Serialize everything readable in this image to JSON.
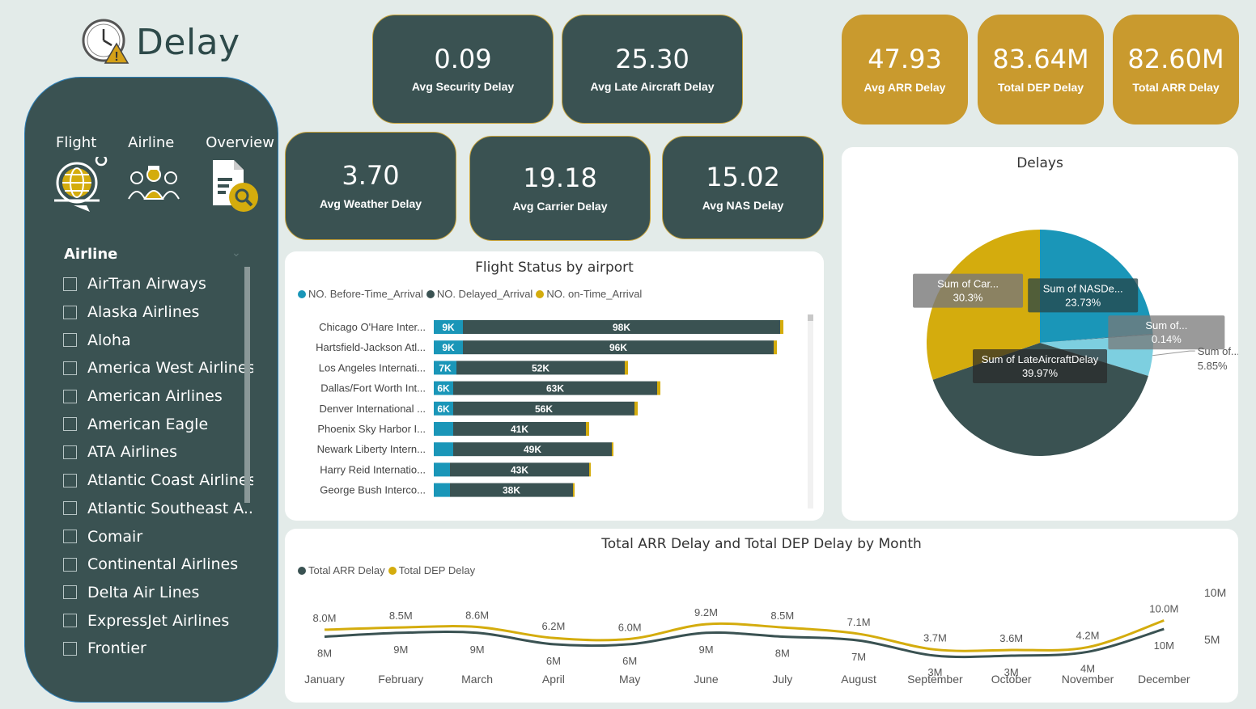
{
  "page": {
    "title": "Delay"
  },
  "nav": [
    {
      "label": "Flight",
      "icon": "globe-plane-icon"
    },
    {
      "label": "Airline",
      "icon": "pilots-icon"
    },
    {
      "label": "Overview",
      "icon": "document-search-icon"
    }
  ],
  "slicer": {
    "title": "Airline",
    "items": [
      "AirTran Airways",
      "Alaska Airlines",
      "Aloha",
      "America West Airlines",
      "American Airlines",
      "American Eagle",
      "ATA Airlines",
      "Atlantic Coast Airlines",
      "Atlantic Southeast A...",
      "Comair",
      "Continental Airlines",
      "Delta Air Lines",
      "ExpressJet Airlines",
      "Frontier"
    ]
  },
  "kpis": {
    "security": {
      "value": "0.09",
      "label": "Avg Security Delay"
    },
    "late_aircraft": {
      "value": "25.30",
      "label": "Avg Late Aircraft Delay"
    },
    "weather": {
      "value": "3.70",
      "label": "Avg Weather Delay"
    },
    "carrier": {
      "value": "19.18",
      "label": "Avg Carrier Delay"
    },
    "nas": {
      "value": "15.02",
      "label": "Avg NAS Delay"
    },
    "arr": {
      "value": "47.93",
      "label": "Avg ARR Delay"
    },
    "total_dep": {
      "value": "83.64M",
      "label": "Total DEP Delay"
    },
    "total_arr": {
      "value": "82.60M",
      "label": "Total ARR Delay"
    }
  },
  "colors": {
    "dark": "#3a5252",
    "gold": "#d4ac0d",
    "teal": "#1a96b8",
    "light_teal": "#7dcfe0",
    "kpi_gold": "#c99a2e"
  },
  "chart_data": [
    {
      "type": "bar",
      "orientation": "horizontal-stacked",
      "title": "Flight Status by airport",
      "categories": [
        "Chicago O'Hare Inter...",
        "Hartsfield-Jackson Atl...",
        "Los Angeles Internati...",
        "Dallas/Fort Worth Int...",
        "Denver International ...",
        "Phoenix Sky Harbor I...",
        "Newark Liberty Intern...",
        "Harry Reid Internatio...",
        "George Bush Interco..."
      ],
      "series": [
        {
          "name": "NO. Before-Time_Arrival",
          "color": "#1a96b8",
          "values": [
            9,
            9,
            7,
            6,
            6,
            6,
            6,
            5,
            5
          ],
          "labels": [
            "9K",
            "9K",
            "7K",
            "6K",
            "6K",
            "",
            "",
            "",
            ""
          ]
        },
        {
          "name": "NO. Delayed_Arrival",
          "color": "#3a5252",
          "values": [
            98,
            96,
            52,
            63,
            56,
            41,
            49,
            43,
            38
          ],
          "labels": [
            "98K",
            "96K",
            "52K",
            "63K",
            "56K",
            "41K",
            "49K",
            "43K",
            "38K"
          ]
        },
        {
          "name": "NO. on-Time_Arrival",
          "color": "#d4ac0d",
          "values": [
            1,
            1,
            1,
            1,
            1,
            1,
            0.5,
            0.5,
            0.5
          ]
        }
      ],
      "legend_position": "top-left"
    },
    {
      "type": "pie",
      "title": "Delays",
      "slices": [
        {
          "label": "Sum of NASDe...",
          "value": 23.73,
          "display": "23.73%",
          "color": "#1a96b8"
        },
        {
          "label": "Sum of...",
          "value": 0.14,
          "display": "0.14%",
          "color": "#3f6e80"
        },
        {
          "label": "Sum of...",
          "value": 5.85,
          "display": "5.85%",
          "color": "#7dcfe0"
        },
        {
          "label": "Sum of LateAircraftDelay",
          "value": 39.97,
          "display": "39.97%",
          "color": "#3a5252"
        },
        {
          "label": "Sum of Car...",
          "value": 30.3,
          "display": "30.3%",
          "color": "#d4ac0d"
        }
      ]
    },
    {
      "type": "line",
      "title": "Total ARR Delay and Total DEP Delay by Month",
      "categories": [
        "January",
        "February",
        "March",
        "April",
        "May",
        "June",
        "July",
        "August",
        "September",
        "October",
        "November",
        "December"
      ],
      "series": [
        {
          "name": "Total ARR Delay",
          "color": "#3a5252",
          "values": [
            8,
            9,
            9,
            6,
            6,
            9,
            8,
            7,
            3,
            3,
            4,
            10
          ],
          "labels": [
            "8M",
            "9M",
            "9M",
            "6M",
            "6M",
            "9M",
            "8M",
            "7M",
            "3M",
            "3M",
            "4M",
            "10M"
          ]
        },
        {
          "name": "Total DEP Delay",
          "color": "#d4ac0d",
          "values": [
            8.0,
            8.5,
            8.6,
            6.2,
            6.0,
            9.2,
            8.5,
            7.1,
            3.7,
            3.6,
            4.2,
            10.0
          ],
          "labels": [
            "8.0M",
            "8.5M",
            "8.6M",
            "6.2M",
            "6.0M",
            "9.2M",
            "8.5M",
            "7.1M",
            "3.7M",
            "3.6M",
            "4.2M",
            "10.0M"
          ]
        }
      ],
      "y_ticks": [
        "10M",
        "5M"
      ],
      "legend_position": "top-left"
    }
  ]
}
